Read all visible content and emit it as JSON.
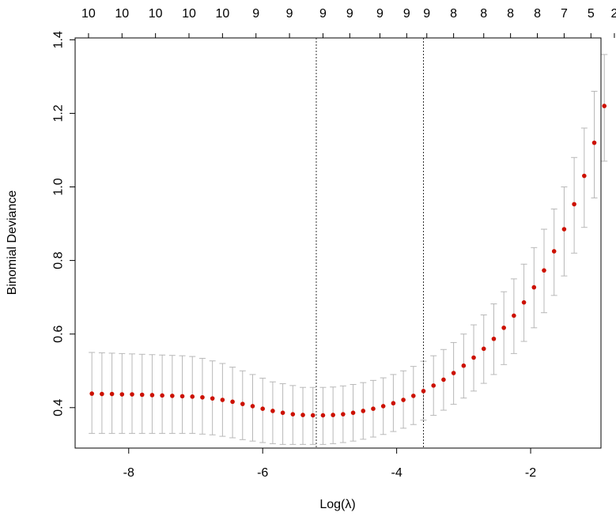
{
  "chart_data": {
    "type": "scatter",
    "title": "",
    "xlabel": "Log(λ)",
    "ylabel": "Binomial Deviance",
    "xlim": [
      -8.8,
      -0.95
    ],
    "ylim": [
      0.29,
      1.405
    ],
    "x_ticks": [
      -8,
      -6,
      -4,
      -2
    ],
    "x_tick_labels": [
      "-8",
      "-6",
      "-4",
      "-2"
    ],
    "y_ticks": [
      0.4,
      0.6,
      0.8,
      1.0,
      1.2,
      1.4
    ],
    "y_tick_labels": [
      "0.4",
      "0.6",
      "0.8",
      "1.0",
      "1.2",
      "1.4"
    ],
    "top_axis": {
      "labels": [
        "10",
        "10",
        "10",
        "10",
        "10",
        "9",
        "9",
        "9",
        "9",
        "9",
        "9",
        "9",
        "8",
        "8",
        "8",
        "8",
        "7",
        "5",
        "2"
      ],
      "positions": [
        -8.6,
        -8.1,
        -7.6,
        -7.1,
        -6.6,
        -6.1,
        -5.6,
        -5.1,
        -4.7,
        -4.25,
        -3.85,
        -3.55,
        -3.15,
        -2.7,
        -2.3,
        -1.9,
        -1.5,
        -1.1,
        -0.75
      ]
    },
    "vlines": [
      -5.2,
      -3.6
    ],
    "point_color": "#cc1100",
    "errorbar_color": "#b8b8b8",
    "vline_color": "#333333",
    "grid": false,
    "series": [
      {
        "x": [
          -8.55,
          -8.4,
          -8.25,
          -8.1,
          -7.95,
          -7.8,
          -7.65,
          -7.5,
          -7.35,
          -7.2,
          -7.05,
          -6.9,
          -6.75,
          -6.6,
          -6.45,
          -6.3,
          -6.15,
          -6.0,
          -5.85,
          -5.7,
          -5.55,
          -5.4,
          -5.25,
          -5.1,
          -4.95,
          -4.8,
          -4.65,
          -4.5,
          -4.35,
          -4.2,
          -4.05,
          -3.9,
          -3.75,
          -3.6,
          -3.45,
          -3.3,
          -3.15,
          -3.0,
          -2.85,
          -2.7,
          -2.55,
          -2.4,
          -2.25,
          -2.1,
          -1.95,
          -1.8,
          -1.65,
          -1.5,
          -1.35,
          -1.2,
          -1.05,
          -0.9
        ],
        "y": [
          0.438,
          0.437,
          0.437,
          0.436,
          0.436,
          0.435,
          0.434,
          0.433,
          0.432,
          0.431,
          0.43,
          0.428,
          0.425,
          0.421,
          0.416,
          0.41,
          0.404,
          0.397,
          0.391,
          0.386,
          0.382,
          0.38,
          0.379,
          0.379,
          0.38,
          0.382,
          0.386,
          0.391,
          0.397,
          0.404,
          0.412,
          0.421,
          0.432,
          0.445,
          0.46,
          0.476,
          0.494,
          0.514,
          0.536,
          0.56,
          0.587,
          0.617,
          0.65,
          0.686,
          0.727,
          0.773,
          0.825,
          0.885,
          0.953,
          1.03,
          1.12,
          1.22
        ],
        "lower": [
          0.33,
          0.33,
          0.33,
          0.33,
          0.33,
          0.33,
          0.33,
          0.33,
          0.33,
          0.33,
          0.33,
          0.328,
          0.326,
          0.322,
          0.318,
          0.313,
          0.309,
          0.305,
          0.302,
          0.3,
          0.3,
          0.3,
          0.3,
          0.3,
          0.302,
          0.305,
          0.309,
          0.314,
          0.32,
          0.327,
          0.335,
          0.344,
          0.354,
          0.366,
          0.379,
          0.393,
          0.409,
          0.426,
          0.445,
          0.466,
          0.49,
          0.517,
          0.547,
          0.58,
          0.617,
          0.658,
          0.705,
          0.758,
          0.82,
          0.89,
          0.97,
          1.07
        ],
        "upper": [
          0.55,
          0.549,
          0.548,
          0.547,
          0.546,
          0.545,
          0.544,
          0.543,
          0.542,
          0.541,
          0.539,
          0.534,
          0.527,
          0.52,
          0.51,
          0.5,
          0.49,
          0.48,
          0.47,
          0.465,
          0.46,
          0.455,
          0.455,
          0.455,
          0.456,
          0.459,
          0.463,
          0.468,
          0.474,
          0.481,
          0.49,
          0.5,
          0.512,
          0.526,
          0.541,
          0.558,
          0.577,
          0.6,
          0.625,
          0.652,
          0.682,
          0.715,
          0.75,
          0.79,
          0.835,
          0.885,
          0.94,
          1.0,
          1.08,
          1.16,
          1.26,
          1.36
        ]
      }
    ]
  }
}
